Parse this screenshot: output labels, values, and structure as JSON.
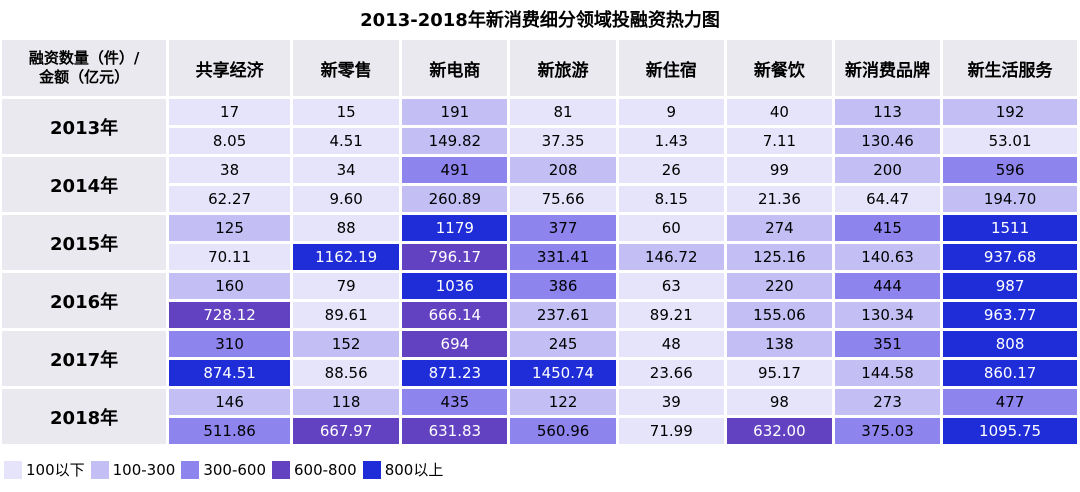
{
  "title": "2013-2018年新消费细分领域投融资热力图",
  "corner_label": "融资数量（件）/ 金额（亿元）",
  "corner_line1": "融资数量（件）/",
  "corner_line2": "金额（亿元）",
  "chart_data": {
    "type": "heatmap",
    "title": "2013-2018年新消费细分领域投融资热力图",
    "columns": [
      "共享经济",
      "新零售",
      "新电商",
      "新旅游",
      "新住宿",
      "新餐饮",
      "新消费品牌",
      "新生活服务"
    ],
    "rows": [
      {
        "year": "2013年",
        "count": [
          17,
          15,
          191,
          81,
          9,
          40,
          113,
          192
        ],
        "amount": [
          "8.05",
          "4.51",
          "149.82",
          "37.35",
          "1.43",
          "7.11",
          "130.46",
          "53.01"
        ]
      },
      {
        "year": "2014年",
        "count": [
          38,
          34,
          491,
          208,
          26,
          99,
          200,
          596
        ],
        "amount": [
          "62.27",
          "9.60",
          "260.89",
          "75.66",
          "8.15",
          "21.36",
          "64.47",
          "194.70"
        ]
      },
      {
        "year": "2015年",
        "count": [
          125,
          88,
          1179,
          377,
          60,
          274,
          415,
          1511
        ],
        "amount": [
          "70.11",
          "1162.19",
          "796.17",
          "331.41",
          "146.72",
          "125.16",
          "140.63",
          "937.68"
        ]
      },
      {
        "year": "2016年",
        "count": [
          160,
          79,
          1036,
          386,
          63,
          220,
          444,
          987
        ],
        "amount": [
          "728.12",
          "89.61",
          "666.14",
          "237.61",
          "89.21",
          "155.06",
          "130.34",
          "963.77"
        ]
      },
      {
        "year": "2017年",
        "count": [
          310,
          152,
          694,
          245,
          48,
          138,
          351,
          808
        ],
        "amount": [
          "874.51",
          "88.56",
          "871.23",
          "1450.74",
          "23.66",
          "95.17",
          "144.58",
          "860.17"
        ]
      },
      {
        "year": "2018年",
        "count": [
          146,
          118,
          435,
          122,
          39,
          98,
          273,
          477
        ],
        "amount": [
          "511.86",
          "667.97",
          "631.83",
          "560.96",
          "71.99",
          "632.00",
          "375.03",
          "1095.75"
        ]
      }
    ],
    "legend": [
      {
        "label": "100以下",
        "color": "#e6e4fb"
      },
      {
        "label": "100-300",
        "color": "#c3bff5"
      },
      {
        "label": "300-600",
        "color": "#8d84ed"
      },
      {
        "label": "600-800",
        "color": "#6342c2"
      },
      {
        "label": "800以上",
        "color": "#1f2dd8"
      }
    ],
    "bins": [
      100,
      300,
      600,
      800
    ],
    "legend_position": "bottom-left"
  }
}
